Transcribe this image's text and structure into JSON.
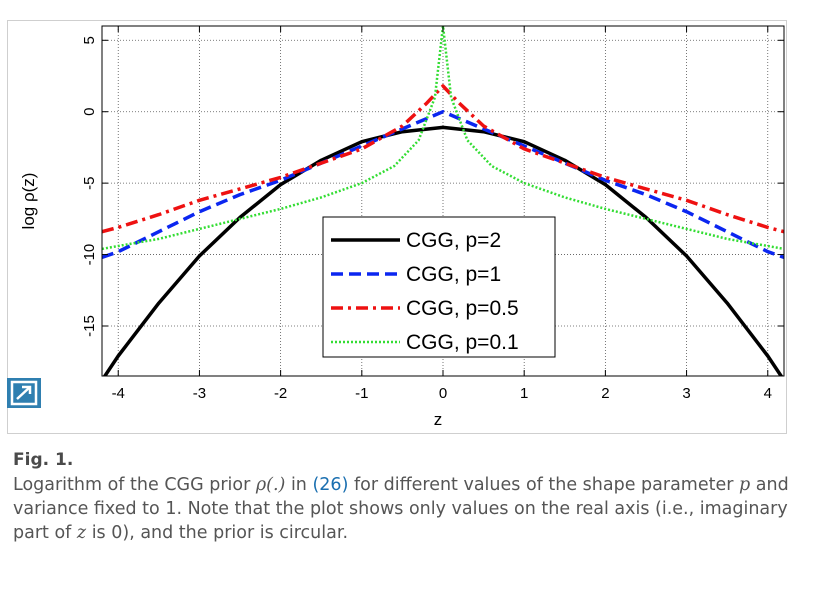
{
  "figure": {
    "label": "Fig. 1.",
    "caption": {
      "part1": "Logarithm of the CGG prior ",
      "rho": "ρ(.)",
      "part2": " in ",
      "ref": "(26)",
      "part3": " for different values of the shape parameter ",
      "p": "p",
      "part4": " and variance fixed to 1. Note that the plot shows only values on the real axis (i.e., imaginary part of ",
      "z": "z",
      "part5": " is 0), and the prior is circular."
    },
    "expand_icon": "expand-arrow-icon"
  },
  "chart_data": {
    "type": "line",
    "xlabel": "z",
    "ylabel": "log ρ(z)",
    "xlim": [
      -4.2,
      4.2
    ],
    "ylim": [
      -18.5,
      6
    ],
    "xticks": [
      -4,
      -3,
      -2,
      -1,
      0,
      1,
      2,
      3,
      4
    ],
    "yticks": [
      5,
      0,
      -5,
      -10,
      -15
    ],
    "grid": true,
    "legend_position": "center-bottom",
    "series": [
      {
        "name": "CGG, p=2",
        "color": "#000000",
        "style": "solid",
        "x": [
          -4.2,
          -4,
          -3.5,
          -3,
          -2.5,
          -2,
          -1.5,
          -1,
          -0.5,
          0,
          0.5,
          1,
          1.5,
          2,
          2.5,
          3,
          3.5,
          4,
          4.2
        ],
        "y": [
          -18.8,
          -17.1,
          -13.4,
          -10.1,
          -7.4,
          -5.1,
          -3.4,
          -2.1,
          -1.4,
          -1.1,
          -1.4,
          -2.1,
          -3.4,
          -5.1,
          -7.4,
          -10.1,
          -13.4,
          -17.1,
          -18.8
        ]
      },
      {
        "name": "CGG, p=1",
        "color": "#0b26f0",
        "style": "dashed",
        "x": [
          -4.2,
          -4,
          -3.5,
          -3,
          -2.5,
          -2,
          -1.5,
          -1,
          -0.5,
          0,
          0.5,
          1,
          1.5,
          2,
          2.5,
          3,
          3.5,
          4,
          4.2
        ],
        "y": [
          -10.2,
          -9.8,
          -8.4,
          -7.0,
          -5.8,
          -4.8,
          -3.6,
          -2.4,
          -1.2,
          0,
          -1.2,
          -2.4,
          -3.6,
          -4.8,
          -5.8,
          -7.0,
          -8.4,
          -9.8,
          -10.2
        ]
      },
      {
        "name": "CGG, p=0.5",
        "color": "#ee1111",
        "style": "dashdot",
        "x": [
          -4.2,
          -4,
          -3.5,
          -3,
          -2.5,
          -2,
          -1.5,
          -1,
          -0.5,
          -0.2,
          0,
          0.2,
          0.5,
          1,
          1.5,
          2,
          2.5,
          3,
          3.5,
          4,
          4.2
        ],
        "y": [
          -8.4,
          -8.1,
          -7.2,
          -6.2,
          -5.4,
          -4.6,
          -3.6,
          -2.6,
          -1.0,
          0.6,
          1.8,
          0.6,
          -1.0,
          -2.6,
          -3.6,
          -4.6,
          -5.4,
          -6.2,
          -7.2,
          -8.1,
          -8.4
        ]
      },
      {
        "name": "CGG, p=0.1",
        "color": "#33dd33",
        "style": "dotted",
        "x": [
          -4.2,
          -4,
          -3.5,
          -3,
          -2.5,
          -2,
          -1.5,
          -1,
          -0.6,
          -0.3,
          -0.1,
          0,
          0.1,
          0.3,
          0.6,
          1,
          1.5,
          2,
          2.5,
          3,
          3.5,
          4,
          4.2
        ],
        "y": [
          -9.6,
          -9.4,
          -8.9,
          -8.2,
          -7.5,
          -6.8,
          -6.0,
          -5.0,
          -3.8,
          -2.0,
          1.0,
          6.0,
          1.0,
          -2.0,
          -3.8,
          -5.0,
          -6.0,
          -6.8,
          -7.5,
          -8.2,
          -8.9,
          -9.4,
          -9.6
        ]
      }
    ]
  }
}
